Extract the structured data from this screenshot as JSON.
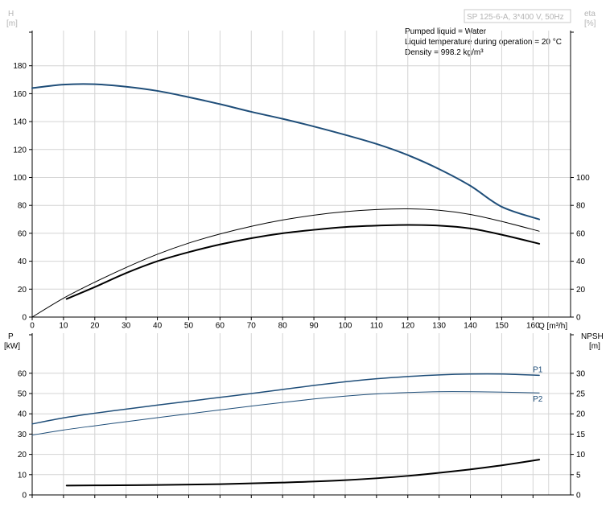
{
  "header": {
    "pump_label": "SP 125-6-A, 3*400 V, 50Hz",
    "left_axis_letter": "H",
    "left_axis_unit": "[m]",
    "right_axis_letter": "eta",
    "right_axis_unit": "[%]"
  },
  "info": {
    "line1": "Pumped liquid = Water",
    "line2": "Liquid temperature during operation = 20 °C",
    "line3": "Density = 998.2 kg/m³"
  },
  "bottom_axes": {
    "left_letter": "P",
    "left_unit": "[kW]",
    "right_letter": "NPSH",
    "right_unit": "[m]"
  },
  "colors": {
    "head": "#1f4e79",
    "eta": "#000000",
    "power": "#1f4e79",
    "npsh": "#000000",
    "grid": "#d4d4d4"
  },
  "chart_data": [
    {
      "type": "line",
      "xlabel": "Q [m³/h]",
      "xlim": [
        0,
        172
      ],
      "xticks": [
        0,
        10,
        20,
        30,
        40,
        50,
        60,
        70,
        80,
        90,
        100,
        110,
        120,
        130,
        140,
        150,
        160
      ],
      "ylabel": "H [m]",
      "ylim": [
        0,
        190
      ],
      "yticks": [
        0,
        20,
        40,
        60,
        80,
        100,
        120,
        140,
        160,
        180
      ],
      "y2label": "eta [%]",
      "y2ticks": [
        0,
        20,
        40,
        60,
        80,
        100
      ],
      "grid": true,
      "series": [
        {
          "name": "H",
          "axis": "left",
          "color": "#1f4e79",
          "width": 2,
          "x": [
            0,
            10,
            20,
            30,
            40,
            50,
            60,
            70,
            80,
            90,
            100,
            110,
            120,
            130,
            140,
            150,
            162
          ],
          "values": [
            164,
            166.5,
            166.8,
            165,
            162,
            157.5,
            152.5,
            147,
            142,
            136.5,
            130.5,
            124,
            116,
            106,
            94,
            79,
            70
          ]
        },
        {
          "name": "eta",
          "axis": "right",
          "color": "#000000",
          "width": 1,
          "x": [
            0,
            10,
            20,
            30,
            40,
            50,
            60,
            70,
            80,
            90,
            100,
            110,
            120,
            130,
            140,
            150,
            162
          ],
          "values": [
            0,
            13.5,
            25,
            35.5,
            45,
            53,
            59.5,
            65,
            69.5,
            73,
            75.5,
            77,
            77.5,
            76.5,
            73.5,
            68.5,
            61.5
          ]
        },
        {
          "name": "eta_p",
          "axis": "right",
          "color": "#000000",
          "width": 2,
          "x": [
            11,
            20,
            30,
            40,
            50,
            60,
            70,
            80,
            90,
            100,
            110,
            120,
            130,
            140,
            150,
            162
          ],
          "values": [
            13,
            21.5,
            31.5,
            40,
            46.5,
            52,
            56.5,
            60,
            62.5,
            64.5,
            65.5,
            66,
            65.5,
            63.5,
            59,
            52.5
          ]
        }
      ]
    },
    {
      "type": "line",
      "xlim": [
        0,
        172
      ],
      "xticks": [
        0,
        10,
        20,
        30,
        40,
        50,
        60,
        70,
        80,
        90,
        100,
        110,
        120,
        130,
        140,
        150,
        160
      ],
      "ylabel": "P [kW]",
      "ylim": [
        0,
        70
      ],
      "yticks": [
        0,
        10,
        20,
        30,
        40,
        50,
        60
      ],
      "y2label": "NPSH [m]",
      "y2ticks": [
        0,
        5,
        10,
        15,
        20,
        25,
        30
      ],
      "grid": true,
      "series": [
        {
          "name": "P1",
          "axis": "left",
          "color": "#1f4e79",
          "width": 1.5,
          "x": [
            0,
            10,
            20,
            30,
            40,
            50,
            60,
            70,
            80,
            90,
            100,
            110,
            120,
            130,
            140,
            150,
            162
          ],
          "values": [
            35,
            38,
            40.3,
            42.3,
            44.3,
            46.2,
            48.1,
            50,
            52,
            54,
            55.8,
            57.3,
            58.4,
            59.2,
            59.6,
            59.6,
            59
          ]
        },
        {
          "name": "P2",
          "axis": "left",
          "color": "#1f4e79",
          "width": 1,
          "x": [
            0,
            10,
            20,
            30,
            40,
            50,
            60,
            70,
            80,
            90,
            100,
            110,
            120,
            130,
            140,
            150,
            162
          ],
          "values": [
            29.5,
            32,
            34.1,
            36.1,
            38.1,
            40,
            41.9,
            43.8,
            45.6,
            47.3,
            48.7,
            49.8,
            50.5,
            50.9,
            50.9,
            50.7,
            50.3
          ]
        },
        {
          "name": "NPSH",
          "axis": "right",
          "color": "#000000",
          "width": 2,
          "x": [
            11,
            20,
            40,
            60,
            80,
            100,
            120,
            140,
            150,
            162
          ],
          "values": [
            2.3,
            2.35,
            2.45,
            2.65,
            3.05,
            3.65,
            4.7,
            6.3,
            7.3,
            8.7
          ]
        }
      ]
    }
  ]
}
